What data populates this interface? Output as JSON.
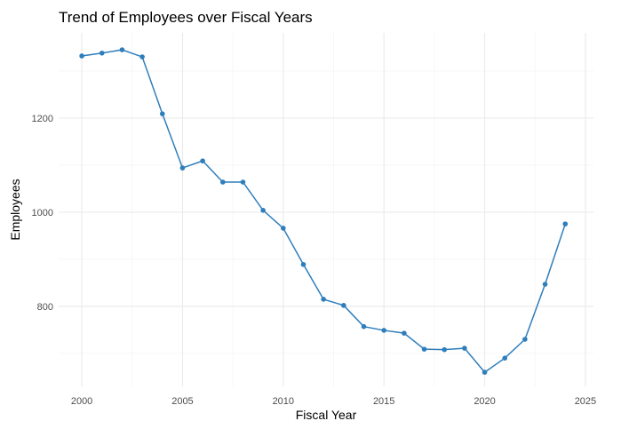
{
  "chart_data": {
    "type": "line",
    "title": "Trend of Employees over Fiscal Years",
    "xlabel": "Fiscal Year",
    "ylabel": "Employees",
    "x": [
      2000,
      2001,
      2002,
      2003,
      2004,
      2005,
      2006,
      2007,
      2008,
      2009,
      2010,
      2011,
      2012,
      2013,
      2014,
      2015,
      2016,
      2017,
      2018,
      2019,
      2020,
      2021,
      2022,
      2023,
      2024
    ],
    "series": [
      {
        "values": [
          1332,
          1338,
          1345,
          1330,
          1209,
          1094,
          1109,
          1064,
          1064,
          1004,
          966,
          889,
          815,
          802,
          757,
          749,
          743,
          709,
          708,
          711,
          660,
          690,
          730,
          847,
          975
        ]
      }
    ],
    "xlim": [
      1998.85,
      2025.4
    ],
    "ylim": [
      630,
      1381
    ],
    "xticks": [
      "2000",
      "2005",
      "2010",
      "2015",
      "2020",
      "2025"
    ],
    "yticks": [
      "800",
      "1000",
      "1200"
    ],
    "grid": true,
    "color": "#2e7ebc",
    "gridColor": "#ebebeb"
  }
}
